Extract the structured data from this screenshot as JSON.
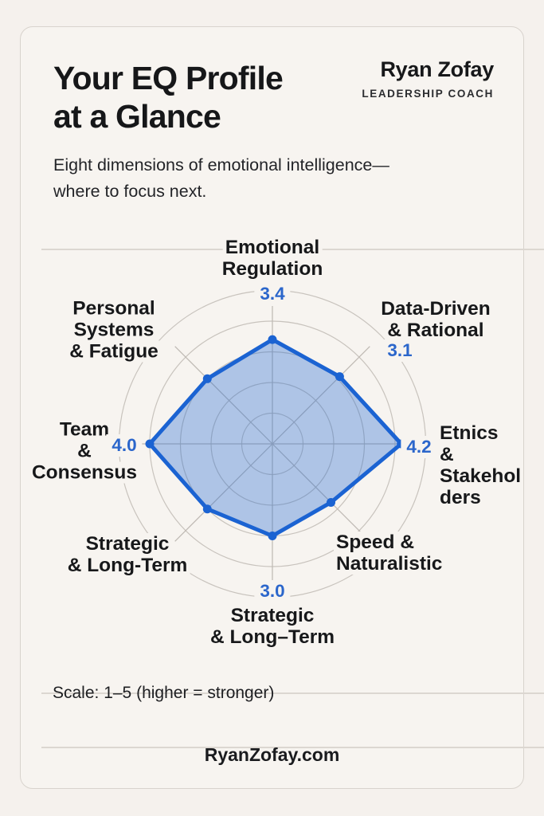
{
  "header": {
    "title_lines": [
      "Your EQ Profile",
      "at a Glance"
    ],
    "brand_name": "Ryan Zofay",
    "brand_role": "LEADERSHIP COACH",
    "subtitle_lines": [
      "Eight dimensions of emotional intelligence—",
      "where to focus next."
    ]
  },
  "chart_data": {
    "type": "radar",
    "scale_min": 1,
    "scale_max": 5,
    "gridline_levels": [
      1,
      2,
      3,
      4,
      5
    ],
    "series_color": "#1b63d2",
    "fill_color": "rgba(28,99,208,0.33)",
    "grid_color": "#c8c3bd",
    "spoke_color": "#bdb8b2",
    "value_color": "#2b66cb",
    "axes": [
      {
        "label": "Emotional Regulation",
        "lines": [
          "Emotional",
          "Regulation"
        ],
        "value": 3.4,
        "value_label": "3.4"
      },
      {
        "label": "Data-Driven & Rational",
        "lines": [
          "Data-Driven",
          "& Rational"
        ],
        "value": 3.1,
        "value_label": "3.1"
      },
      {
        "label": "Etnics & Stakeholders",
        "lines": [
          "Etnics",
          "&",
          "Stakehol",
          "ders"
        ],
        "value": 4.2,
        "value_label": "4.2"
      },
      {
        "label": "Speed & Naturalistic",
        "lines": [
          "Speed &",
          "Naturalistic"
        ],
        "value": 2.7,
        "value_label": ""
      },
      {
        "label": "Strategic & Long–Term",
        "lines": [
          "Strategic",
          "& Long–Term"
        ],
        "value": 3.0,
        "value_label": "3.0"
      },
      {
        "label": "Strategic & Long-Term",
        "lines": [
          "Strategic",
          "& Long-Term"
        ],
        "value": 3.0,
        "value_label": ""
      },
      {
        "label": "Team & Consensus",
        "lines": [
          "Team",
          "&",
          "Consensus"
        ],
        "value": 4.0,
        "value_label": "4.0"
      },
      {
        "label": "Personal Systems & Fatigue",
        "lines": [
          "Personal",
          "Systems",
          "& Fatigue"
        ],
        "value": 3.0,
        "value_label": ""
      }
    ]
  },
  "footer": {
    "scale_note": "Scale: 1–5 (higher = stronger)",
    "website": "RyanZofay.com"
  }
}
